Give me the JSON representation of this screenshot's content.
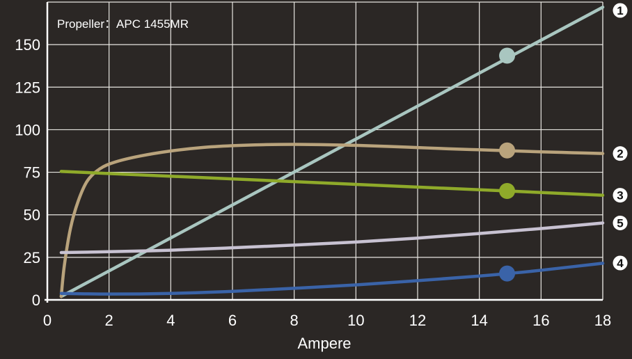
{
  "chart_data": {
    "type": "line",
    "annotation": "Propeller：APC 1455MR",
    "xlabel": "Ampere",
    "ylabel": "",
    "xlim": [
      0,
      18
    ],
    "ylim": [
      0,
      175
    ],
    "x_ticks": [
      "0",
      "2",
      "4",
      "6",
      "8",
      "10",
      "12",
      "14",
      "16",
      "18"
    ],
    "y_ticks": [
      "0",
      "25",
      "50",
      "75",
      "100",
      "125",
      "150"
    ],
    "x_tick_values": [
      0,
      2,
      4,
      6,
      8,
      10,
      12,
      14,
      16,
      18
    ],
    "y_tick_values": [
      0,
      25,
      50,
      75,
      100,
      125,
      150
    ],
    "grid": true,
    "series": [
      {
        "label": "1",
        "color": "#a9c6c0",
        "points": [
          [
            0.45,
            2
          ],
          [
            18,
            172
          ]
        ],
        "marker": [
          14.9,
          143.5
        ]
      },
      {
        "label": "2",
        "color": "#b9a37c",
        "points": [
          [
            0.45,
            2
          ],
          [
            0.55,
            20
          ],
          [
            0.75,
            42
          ],
          [
            1.0,
            58
          ],
          [
            1.3,
            70
          ],
          [
            1.7,
            77
          ],
          [
            2.2,
            81
          ],
          [
            3,
            84.5
          ],
          [
            4,
            87.5
          ],
          [
            5,
            89.5
          ],
          [
            6,
            90.6
          ],
          [
            7,
            91.2
          ],
          [
            8,
            91.4
          ],
          [
            9,
            91.2
          ],
          [
            10,
            90.8
          ],
          [
            11,
            90.2
          ],
          [
            12,
            89.5
          ],
          [
            13,
            88.8
          ],
          [
            14,
            88.2
          ],
          [
            15,
            87.6
          ],
          [
            16,
            87.0
          ],
          [
            17,
            86.5
          ],
          [
            18,
            86
          ]
        ],
        "marker": [
          14.9,
          87.8
        ]
      },
      {
        "label": "3",
        "color": "#8faa2a",
        "points": [
          [
            0.45,
            75.5
          ],
          [
            18,
            61.5
          ]
        ],
        "marker": [
          14.9,
          64
        ]
      },
      {
        "label": "5",
        "color": "#c8c2d2",
        "points": [
          [
            0.45,
            27.8
          ],
          [
            2,
            28.3
          ],
          [
            4,
            29.2
          ],
          [
            6,
            30.6
          ],
          [
            8,
            32.2
          ],
          [
            10,
            34.0
          ],
          [
            12,
            36.3
          ],
          [
            14,
            39.0
          ],
          [
            16,
            41.9
          ],
          [
            18,
            45.2
          ]
        ],
        "marker": null
      },
      {
        "label": "4",
        "color": "#3a63a8",
        "points": [
          [
            0.45,
            3.8
          ],
          [
            2,
            3.4
          ],
          [
            4,
            3.8
          ],
          [
            6,
            5.0
          ],
          [
            8,
            6.8
          ],
          [
            10,
            8.8
          ],
          [
            12,
            11.3
          ],
          [
            14,
            14.0
          ],
          [
            15,
            15.6
          ],
          [
            16,
            17.4
          ],
          [
            18,
            21.5
          ]
        ],
        "marker": [
          14.9,
          15.5
        ]
      }
    ]
  }
}
